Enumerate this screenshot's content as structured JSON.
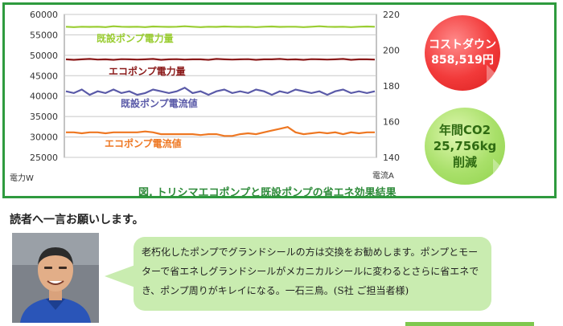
{
  "chart_data": {
    "type": "line",
    "title": "",
    "xlabel": "",
    "ylabel_left": "電力W",
    "ylabel_right": "電流A",
    "ylim_left": [
      25000,
      60000
    ],
    "ylim_right": [
      140,
      220
    ],
    "left_ticks": [
      "60000",
      "55000",
      "50000",
      "45000",
      "40000",
      "35000",
      "30000",
      "25000"
    ],
    "right_ticks": [
      "220",
      "200",
      "180",
      "160",
      "140"
    ],
    "grid": true,
    "series": [
      {
        "name": "既設ポンプ電力量",
        "axis": "left",
        "color": "#9acd32",
        "values": [
          57000,
          56900,
          57000,
          56950,
          57000,
          56900,
          57100,
          57000,
          56950,
          57000,
          56900,
          57050,
          57000,
          56950,
          57000,
          57100,
          57000,
          56900,
          57000,
          56950,
          57050,
          57000,
          56950,
          57000,
          56900,
          57000,
          57050,
          56950,
          57000,
          57000,
          56900,
          57000,
          57100,
          57000,
          56950,
          57000,
          56900,
          57000,
          57050,
          57000
        ]
      },
      {
        "name": "エコポンプ電力量",
        "axis": "left",
        "color": "#8b1a1a",
        "values": [
          49000,
          48900,
          49000,
          49100,
          48950,
          49000,
          48900,
          49050,
          49000,
          48950,
          49000,
          49100,
          48900,
          49000,
          49050,
          48950,
          49000,
          49000,
          48900,
          49100,
          49000,
          48950,
          49000,
          49050,
          48900,
          49000,
          49000,
          49100,
          48950,
          49000,
          48900,
          49050,
          49000,
          48950,
          49000,
          49100,
          48900,
          49000,
          49000,
          48950
        ]
      },
      {
        "name": "既設ポンプ電流値",
        "axis": "right",
        "color": "#5a5aa8",
        "values": [
          177,
          176,
          178,
          175,
          177,
          176,
          178,
          176,
          177,
          175,
          176,
          178,
          177,
          176,
          177,
          179,
          176,
          177,
          175,
          177,
          178,
          176,
          177,
          176,
          178,
          177,
          175,
          177,
          176,
          178,
          177,
          176,
          177,
          175,
          177,
          178,
          176,
          177,
          176,
          177
        ]
      },
      {
        "name": "エコポンプ電流値",
        "axis": "right",
        "color": "#ee7722",
        "values": [
          154,
          154,
          153.5,
          154,
          154,
          153.5,
          154,
          154,
          154,
          154,
          154.5,
          154,
          153,
          153,
          153,
          153,
          153,
          152.5,
          153,
          153,
          152,
          152,
          153,
          153.5,
          153,
          154,
          155,
          156,
          157,
          154,
          153,
          153.5,
          154,
          153.5,
          154,
          153,
          154,
          153.5,
          154,
          154
        ]
      }
    ]
  },
  "caption": "図. トリシマエコポンプと既設ポンプの省エネ効果結果",
  "badges": {
    "cost_title": "コストダウン",
    "cost_value": "858,519円",
    "co2_title": "年間CO2",
    "co2_value": "25,756kg",
    "co2_suffix": "削減",
    "cost_color": "#f23a3a",
    "co2_color": "#a9e06a"
  },
  "section": {
    "heading": "読者へ一言お願いします。",
    "quote": "老朽化したポンプでグランドシールの方は交換をお勧めします。ポンプとモーターで省エネしグランドシールがメカニカルシールに変わるとさらに省エネでき、ポンプ周りがキレイになる。一石三鳥。(S社 ご担当者様)"
  }
}
